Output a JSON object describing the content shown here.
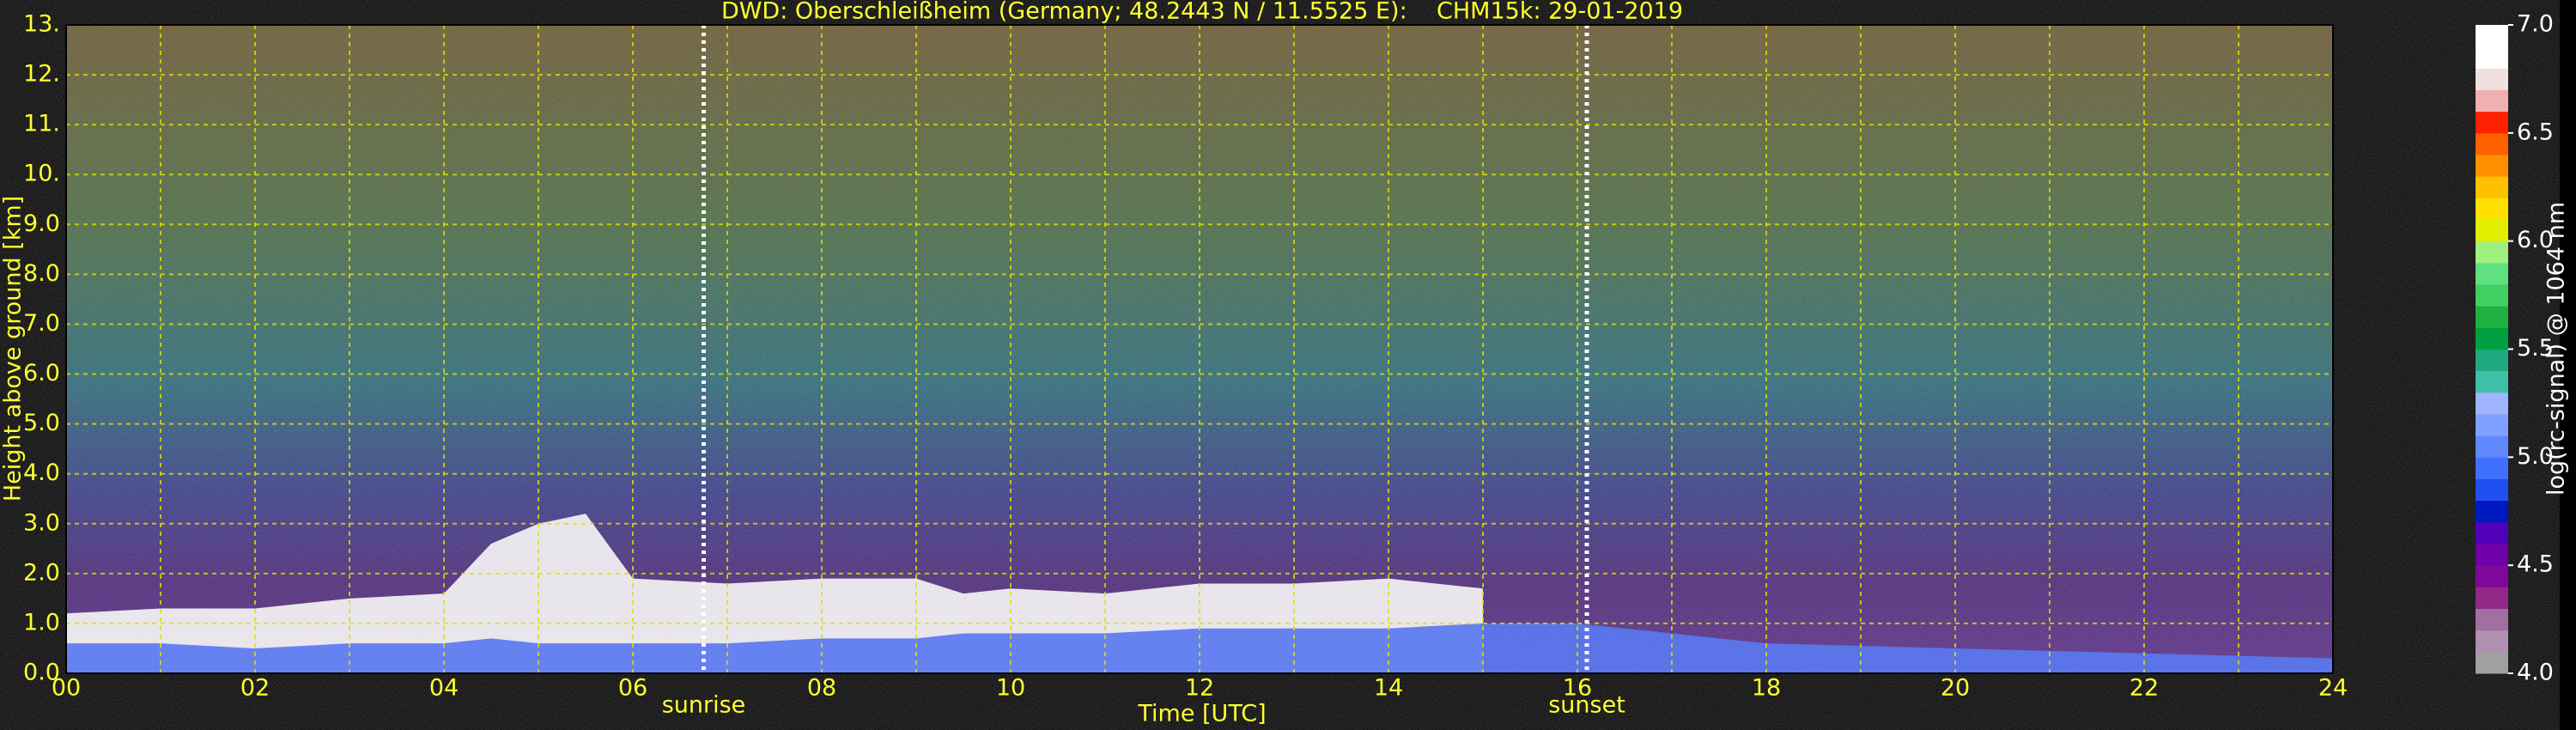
{
  "chart_data": {
    "type": "area",
    "title": "DWD: Oberschleißheim (Germany; 48.2443 N / 11.5525 E):    CHM15k: 29-01-2019",
    "x_label": "Time [UTC]",
    "y_label": "Height above ground [km]",
    "xlim": [
      0,
      24
    ],
    "xticks": [
      {
        "value": 0,
        "label": "00"
      },
      {
        "value": 2,
        "label": "02"
      },
      {
        "value": 4,
        "label": "04"
      },
      {
        "value": 6,
        "label": "06"
      },
      {
        "value": 8,
        "label": "08"
      },
      {
        "value": 10,
        "label": "10"
      },
      {
        "value": 12,
        "label": "12"
      },
      {
        "value": 14,
        "label": "14"
      },
      {
        "value": 16,
        "label": "16"
      },
      {
        "value": 18,
        "label": "18"
      },
      {
        "value": 20,
        "label": "20"
      },
      {
        "value": 22,
        "label": "22"
      },
      {
        "value": 24,
        "label": "24"
      }
    ],
    "xminorticks": [
      1,
      3,
      5,
      7,
      9,
      11,
      13,
      15,
      17,
      19,
      21,
      23
    ],
    "ylim": [
      0,
      13
    ],
    "yticks": [
      {
        "value": 0,
        "label": "0.0"
      },
      {
        "value": 1,
        "label": "1.0"
      },
      {
        "value": 2,
        "label": "2.0"
      },
      {
        "value": 3,
        "label": "3.0"
      },
      {
        "value": 4,
        "label": "4.0"
      },
      {
        "value": 5,
        "label": "5.0"
      },
      {
        "value": 6,
        "label": "6.0"
      },
      {
        "value": 7,
        "label": "7.0"
      },
      {
        "value": 8,
        "label": "8.0"
      },
      {
        "value": 9,
        "label": "9.0"
      },
      {
        "value": 10,
        "label": "10."
      },
      {
        "value": 11,
        "label": "11."
      },
      {
        "value": 12,
        "label": "12."
      },
      {
        "value": 13,
        "label": "13."
      }
    ],
    "grid": true,
    "grid_color": "#e0e000",
    "text_color": "#ffff30",
    "x": [
      0,
      1,
      2,
      3,
      4,
      4.5,
      5,
      5.5,
      6,
      7,
      8,
      9,
      9.5,
      10,
      11,
      12,
      13,
      14,
      15,
      16,
      17,
      18,
      20,
      22,
      24
    ],
    "series": [
      {
        "color": "#f4f4f4",
        "values": [
          1.2,
          1.3,
          1.3,
          1.5,
          1.6,
          2.6,
          3.0,
          3.2,
          1.9,
          1.8,
          1.9,
          1.9,
          1.6,
          1.7,
          1.6,
          1.8,
          1.8,
          1.9,
          1.7,
          null,
          null,
          null,
          null,
          null,
          null
        ]
      },
      {
        "color": "#5a78f0",
        "values": [
          0.6,
          0.6,
          0.5,
          0.6,
          0.6,
          0.7,
          0.6,
          0.6,
          0.6,
          0.6,
          0.7,
          0.7,
          0.8,
          0.8,
          0.8,
          0.9,
          0.9,
          0.9,
          1.0,
          1.0,
          0.8,
          0.6,
          0.5,
          0.4,
          0.3
        ]
      }
    ],
    "annotations": [
      {
        "text": "sunrise",
        "x": 6.75
      },
      {
        "text": "sunset",
        "x": 16.1
      }
    ],
    "colorbar": {
      "label": "log(rc-signal) @ 1064 nm",
      "lim": [
        4.0,
        7.0
      ],
      "ticks": [
        {
          "value": 4,
          "label": "4.0"
        },
        {
          "value": 4.5,
          "label": "4.5"
        },
        {
          "value": 5,
          "label": "5.0"
        },
        {
          "value": 5.5,
          "label": "5.5"
        },
        {
          "value": 6,
          "label": "6.0"
        },
        {
          "value": 6.5,
          "label": "6.5"
        },
        {
          "value": 7,
          "label": "7.0"
        }
      ],
      "colors": [
        "#a0a0a0",
        "#b090b0",
        "#a070a0",
        "#902888",
        "#800898",
        "#7000a8",
        "#5000b8",
        "#0018c0",
        "#2050f0",
        "#4070ff",
        "#6088ff",
        "#80a0ff",
        "#a0b4ff",
        "#40c0a8",
        "#20a880",
        "#00a040",
        "#20b040",
        "#40d060",
        "#60e080",
        "#a0f080",
        "#e0f000",
        "#ffe000",
        "#ffc000",
        "#ff9000",
        "#ff6000",
        "#ff2000",
        "#f0b0b0",
        "#f0e0e0",
        "#ffffff",
        "#ffffff"
      ]
    }
  }
}
